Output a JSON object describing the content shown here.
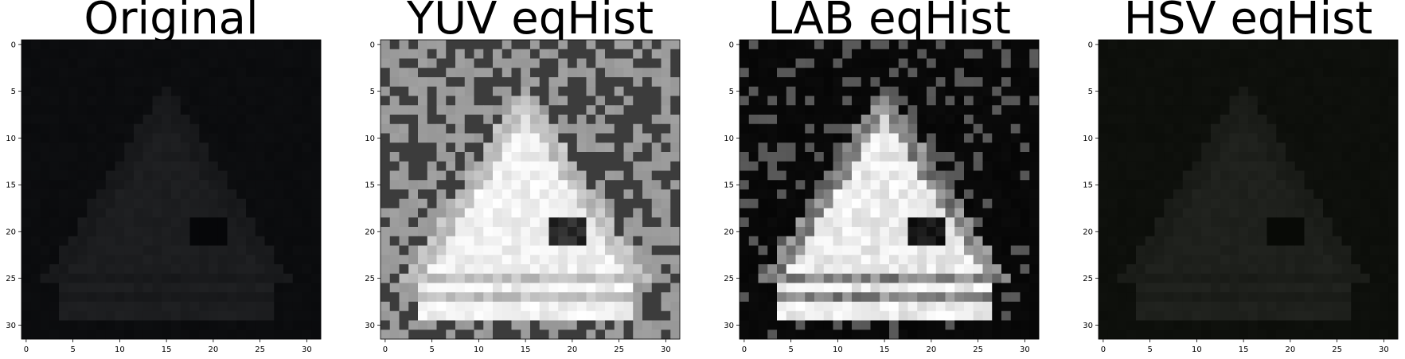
{
  "panels": [
    {
      "title": "Original",
      "style": "dim"
    },
    {
      "title": "YUV eqHist",
      "style": "yuv"
    },
    {
      "title": "LAB eqHist",
      "style": "lab"
    },
    {
      "title": "HSV eqHist",
      "style": "hsv"
    }
  ],
  "axes": {
    "x_ticks": [
      "0",
      "5",
      "10",
      "15",
      "20",
      "25",
      "30"
    ],
    "y_ticks": [
      "0",
      "5",
      "10",
      "15",
      "20",
      "25",
      "30"
    ],
    "x_tick_values": [
      0,
      5,
      10,
      15,
      20,
      25,
      30
    ],
    "y_tick_values": [
      0,
      5,
      10,
      15,
      20,
      25,
      30
    ],
    "image_size": 32
  }
}
